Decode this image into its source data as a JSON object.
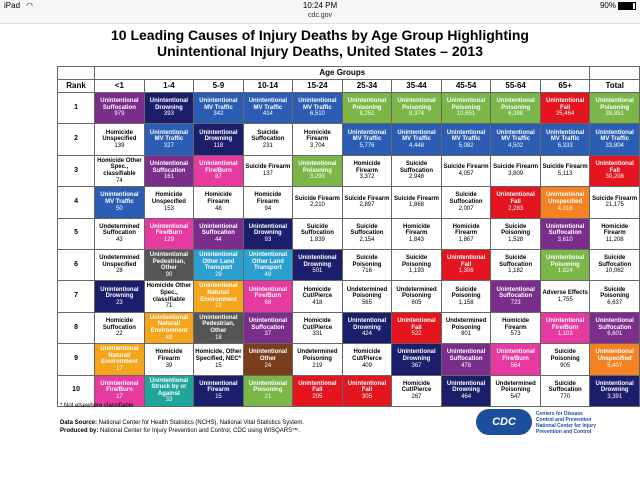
{
  "status": {
    "device": "iPad",
    "wifi": "wifi-icon",
    "time": "10:24 PM",
    "battery": "90%"
  },
  "url": "cdc.gov",
  "title": "10 Leading Causes of Injury Deaths by Age Group Highlighting",
  "subtitle": "Unintentional Injury Deaths, United States – 2013",
  "header": {
    "rank": "Rank",
    "age_groups": "Age Groups",
    "ages": [
      "<1",
      "1-4",
      "5-9",
      "10-14",
      "15-24",
      "25-34",
      "35-44",
      "45-54",
      "55-64",
      "65+",
      "Total"
    ]
  },
  "ranks": [
    "1",
    "2",
    "3",
    "4",
    "5",
    "6",
    "7",
    "8",
    "9",
    "10"
  ],
  "colors": {
    "U_Suff": "#7b2d8b",
    "U_Drown": "#1b1f6b",
    "U_MV": "#2b5db5",
    "U_Pois": "#7ab648",
    "U_Fall": "#e4151f",
    "U_Fire": "#e63aa0",
    "U_Pedestrian": "#555555",
    "U_OtherLand": "#2b9fd0",
    "U_Natural": "#f4a51c",
    "U_Struck": "#20a59a",
    "U_Other": "#7a3e1c",
    "U_Unspec": "#f58220",
    "Adverse": "#ffffff",
    "Homicide": "#ffffff",
    "Suicide": "#ffffff",
    "Undetermined": "#ffffff",
    "light": "#ffffff"
  },
  "rows": [
    [
      [
        "Unintentional Suffocation",
        "979",
        "U_Suff"
      ],
      [
        "Unintentional Drowning",
        "393",
        "U_Drown"
      ],
      [
        "Unintentional MV Traffic",
        "342",
        "U_MV"
      ],
      [
        "Unintentional MV Traffic",
        "414",
        "U_MV"
      ],
      [
        "Unintentional MV Traffic",
        "6,510",
        "U_MV"
      ],
      [
        "Unintentional Poisoning",
        "8,251",
        "U_Pois"
      ],
      [
        "Unintentional Poisoning",
        "8,374",
        "U_Pois"
      ],
      [
        "Unintentional Poisoning",
        "10,651",
        "U_Pois"
      ],
      [
        "Unintentional Poisoning",
        "6,388",
        "U_Pois"
      ],
      [
        "Unintentional Fall",
        "25,464",
        "U_Fall"
      ],
      [
        "Unintentional Poisoning",
        "38,851",
        "U_Pois"
      ]
    ],
    [
      [
        "Homicide Unspecified",
        "139",
        "Homicide"
      ],
      [
        "Unintentional MV Traffic",
        "327",
        "U_MV"
      ],
      [
        "Unintentional Drowning",
        "118",
        "U_Drown"
      ],
      [
        "Suicide Suffocation",
        "231",
        "Suicide"
      ],
      [
        "Homicide Firearm",
        "3,704",
        "Homicide"
      ],
      [
        "Unintentional MV Traffic",
        "5,776",
        "U_MV"
      ],
      [
        "Unintentional MV Traffic",
        "4,448",
        "U_MV"
      ],
      [
        "Unintentional MV Traffic",
        "5,082",
        "U_MV"
      ],
      [
        "Unintentional MV Traffic",
        "4,502",
        "U_MV"
      ],
      [
        "Unintentional MV Traffic",
        "6,333",
        "U_MV"
      ],
      [
        "Unintentional MV Traffic",
        "33,804",
        "U_MV"
      ]
    ],
    [
      [
        "Homicide Other Spec., classifiable",
        "74",
        "Homicide"
      ],
      [
        "Unintentional Suffocation",
        "161",
        "U_Suff"
      ],
      [
        "Unintentional Fire/Burn",
        "87",
        "U_Fire"
      ],
      [
        "Suicide Firearm",
        "137",
        "Suicide"
      ],
      [
        "Unintentional Poisoning",
        "3,293",
        "U_Pois"
      ],
      [
        "Homicide Firearm",
        "3,372",
        "Homicide"
      ],
      [
        "Suicide Suffocation",
        "2,948",
        "Suicide"
      ],
      [
        "Suicide Firearm",
        "4,057",
        "Suicide"
      ],
      [
        "Suicide Firearm",
        "3,809",
        "Suicide"
      ],
      [
        "Suicide Firearm",
        "5,113",
        "Suicide"
      ],
      [
        "Unintentional Fall",
        "30,208",
        "U_Fall"
      ]
    ],
    [
      [
        "Unintentional MV Traffic",
        "50",
        "U_MV"
      ],
      [
        "Homicide Unspecified",
        "153",
        "Homicide"
      ],
      [
        "Homicide Firearm",
        "48",
        "Homicide"
      ],
      [
        "Homicide Firearm",
        "94",
        "Homicide"
      ],
      [
        "Suicide Firearm",
        "2,210",
        "Suicide"
      ],
      [
        "Suicide Firearm",
        "2,897",
        "Suicide"
      ],
      [
        "Suicide Firearm",
        "1,868",
        "Suicide"
      ],
      [
        "Suicide Suffocation",
        "2,007",
        "Suicide"
      ],
      [
        "Unintentional Fall",
        "2,283",
        "U_Fall"
      ],
      [
        "Unintentional Unspecified",
        "4,316",
        "U_Unspec"
      ],
      [
        "Suicide Firearm",
        "21,175",
        "Suicide"
      ]
    ],
    [
      [
        "Undetermined Suffocation",
        "43",
        "Undetermined"
      ],
      [
        "Unintentional Fire/Burn",
        "129",
        "U_Fire"
      ],
      [
        "Unintentional Suffocation",
        "44",
        "U_Suff"
      ],
      [
        "Unintentional Drowning",
        "93",
        "U_Drown"
      ],
      [
        "Suicide Suffocation",
        "1,839",
        "Suicide"
      ],
      [
        "Suicide Suffocation",
        "2,154",
        "Suicide"
      ],
      [
        "Homicide Firearm",
        "1,843",
        "Homicide"
      ],
      [
        "Homicide Firearm",
        "1,867",
        "Homicide"
      ],
      [
        "Suicide Poisoning",
        "1,528",
        "Suicide"
      ],
      [
        "Unintentional Suffocation",
        "3,610",
        "U_Suff"
      ],
      [
        "Homicide Firearm",
        "11,208",
        "Homicide"
      ]
    ],
    [
      [
        "Undetermined Unspecified",
        "28",
        "Undetermined"
      ],
      [
        "Unintentional Pedestrian, Other",
        "90",
        "U_Pedestrian"
      ],
      [
        "Unintentional Other Land Transport",
        "29",
        "U_OtherLand"
      ],
      [
        "Unintentional Other Land Transport",
        "49",
        "U_OtherLand"
      ],
      [
        "Unintentional Drowning",
        "501",
        "U_Drown"
      ],
      [
        "Suicide Poisoning",
        "716",
        "Suicide"
      ],
      [
        "Suicide Poisoning",
        "1,193",
        "Suicide"
      ],
      [
        "Unintentional Fall",
        "1,306",
        "U_Fall"
      ],
      [
        "Suicide Suffocation",
        "1,182",
        "Suicide"
      ],
      [
        "Unintentional Poisoning",
        "1,824",
        "U_Pois"
      ],
      [
        "Suicide Suffocation",
        "10,062",
        "Suicide"
      ]
    ],
    [
      [
        "Unintentional Drowning",
        "23",
        "U_Drown"
      ],
      [
        "Homicide Other Spec., classifiable",
        "71",
        "Homicide"
      ],
      [
        "Unintentional Natural/ Environment",
        "22",
        "U_Natural"
      ],
      [
        "Unintentional Fire/Burn",
        "68",
        "U_Fire"
      ],
      [
        "Homicide Cut/Pierce",
        "418",
        "Homicide"
      ],
      [
        "Undetermined Poisoning",
        "565",
        "Undetermined"
      ],
      [
        "Undetermined Poisoning",
        "605",
        "Undetermined"
      ],
      [
        "Suicide Poisoning",
        "1,158",
        "Suicide"
      ],
      [
        "Unintentional Suffocation",
        "723",
        "U_Suff"
      ],
      [
        "Adverse Effects",
        "1,755",
        "Adverse"
      ],
      [
        "Suicide Poisoning",
        "6,637",
        "Suicide"
      ]
    ],
    [
      [
        "Homicide Suffocation",
        "22",
        "Homicide"
      ],
      [
        "Unintentional Natural/ Environment",
        "43",
        "U_Natural"
      ],
      [
        "Unintentional Pedestrian, Other",
        "18",
        "U_Pedestrian"
      ],
      [
        "Unintentional Suffocation",
        "37",
        "U_Suff"
      ],
      [
        "Homicide Cut/Pierce",
        "331",
        "Homicide"
      ],
      [
        "Unintentional Drowning",
        "424",
        "U_Drown"
      ],
      [
        "Unintentional Fall",
        "522",
        "U_Fall"
      ],
      [
        "Undetermined Poisoning",
        "801",
        "Undetermined"
      ],
      [
        "Homicide Firearm",
        "573",
        "Homicide"
      ],
      [
        "Unintentional Fire/Burn",
        "1,103",
        "U_Fire"
      ],
      [
        "Unintentional Suffocation",
        "6,601",
        "U_Suff"
      ]
    ],
    [
      [
        "Unintentional Natural/ Environment",
        "17",
        "U_Natural"
      ],
      [
        "Homicide Firearm",
        "39",
        "Homicide"
      ],
      [
        "Homicide, Other Specified, NEC*",
        "15",
        "Homicide"
      ],
      [
        "Unintentional Other",
        "24",
        "U_Other"
      ],
      [
        "Undetermined Poisoning",
        "219",
        "Undetermined"
      ],
      [
        "Homicide Cut/Pierce",
        "409",
        "Homicide"
      ],
      [
        "Unintentional Drowning",
        "367",
        "U_Drown"
      ],
      [
        "Unintentional Suffocation",
        "478",
        "U_Suff"
      ],
      [
        "Unintentional Fire/Burn",
        "564",
        "U_Fire"
      ],
      [
        "Suicide Poisoning",
        "905",
        "Suicide"
      ],
      [
        "Unintentional Unspecified",
        "5,407",
        "U_Unspec"
      ]
    ],
    [
      [
        "Unintentional Fire/Burn",
        "17",
        "U_Fire"
      ],
      [
        "Unintentional Struck by or Against",
        "33",
        "U_Struck"
      ],
      [
        "Unintentional Firearm",
        "15",
        "U_Drown"
      ],
      [
        "Unintentional Poisoning",
        "21",
        "U_Pois"
      ],
      [
        "Unintentional Fall",
        "205",
        "U_Fall"
      ],
      [
        "Unintentional Fall",
        "305",
        "U_Fall"
      ],
      [
        "Homicide Cut/Pierce",
        "267",
        "Homicide"
      ],
      [
        "Unintentional Drowning",
        "464",
        "U_Drown"
      ],
      [
        "Undetermined Poisoning",
        "547",
        "Undetermined"
      ],
      [
        "Suicide Suffocation",
        "770",
        "Suicide"
      ],
      [
        "Unintentional Drowning",
        "3,391",
        "U_Drown"
      ]
    ]
  ],
  "footnote": "* Not elsewhere classifiable",
  "source_label": "Data Source:",
  "source_text": " National Center for Health Statistics (NCHS), National Vital Statistics System.",
  "produced_label": "Produced by:",
  "produced_text": " National Center for Injury Prevention and Control, CDC using WISQARS™.",
  "logo_text": "CDC",
  "cdc_lines": [
    "Centers for Disease",
    "Control and Prevention",
    "National Center for Injury",
    "Prevention and Control"
  ]
}
